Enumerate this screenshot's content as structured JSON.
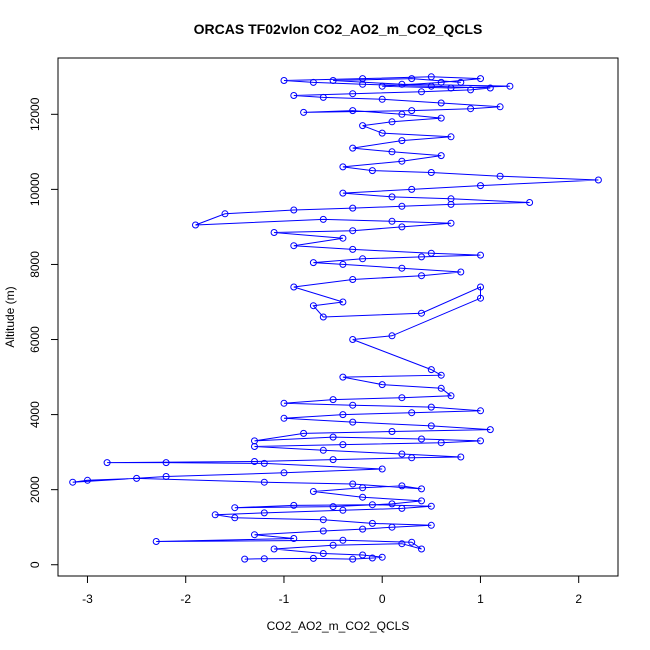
{
  "chart_data": {
    "type": "scatter",
    "title": "ORCAS TF02vlon CO2_AO2_m_CO2_QCLS",
    "xlabel": "CO2_AO2_m_CO2_QCLS",
    "ylabel": "Altitude (m)",
    "xlim": [
      -3.3,
      2.4
    ],
    "ylim": [
      -300,
      13500
    ],
    "x_ticks": [
      -3,
      -2,
      -1,
      0,
      1,
      2
    ],
    "y_ticks": [
      0,
      2000,
      4000,
      6000,
      8000,
      10000,
      12000
    ],
    "series_color": "#0000ff",
    "marker": "open-circle",
    "connected": true,
    "series": [
      {
        "name": "CO2_AO2_m_CO2_QCLS",
        "points": [
          [
            -1.4,
            150
          ],
          [
            -1.2,
            160
          ],
          [
            -0.7,
            170
          ],
          [
            -0.3,
            150
          ],
          [
            -0.1,
            180
          ],
          [
            0.0,
            200
          ],
          [
            -0.2,
            260
          ],
          [
            -0.6,
            300
          ],
          [
            -1.1,
            420
          ],
          [
            -0.5,
            520
          ],
          [
            0.2,
            560
          ],
          [
            0.4,
            420
          ],
          [
            0.3,
            600
          ],
          [
            -0.4,
            650
          ],
          [
            -2.3,
            620
          ],
          [
            -0.9,
            700
          ],
          [
            -1.3,
            800
          ],
          [
            -0.6,
            900
          ],
          [
            -0.2,
            950
          ],
          [
            0.1,
            1000
          ],
          [
            0.5,
            1050
          ],
          [
            -0.1,
            1100
          ],
          [
            -0.6,
            1200
          ],
          [
            -1.5,
            1250
          ],
          [
            -1.7,
            1330
          ],
          [
            -1.2,
            1380
          ],
          [
            -0.4,
            1450
          ],
          [
            0.2,
            1500
          ],
          [
            0.5,
            1560
          ],
          [
            -0.1,
            1600
          ],
          [
            -0.9,
            1580
          ],
          [
            -1.5,
            1520
          ],
          [
            -0.5,
            1550
          ],
          [
            0.1,
            1620
          ],
          [
            0.4,
            1700
          ],
          [
            -0.2,
            1800
          ],
          [
            -0.7,
            1950
          ],
          [
            -0.2,
            2050
          ],
          [
            0.2,
            2100
          ],
          [
            0.4,
            2020
          ],
          [
            -0.3,
            2150
          ],
          [
            -1.2,
            2200
          ],
          [
            -2.5,
            2300
          ],
          [
            -3.0,
            2250
          ],
          [
            -3.15,
            2200
          ],
          [
            -2.2,
            2350
          ],
          [
            -1.0,
            2450
          ],
          [
            0.0,
            2550
          ],
          [
            -1.2,
            2700
          ],
          [
            -2.2,
            2720
          ],
          [
            -2.8,
            2720
          ],
          [
            -1.3,
            2750
          ],
          [
            -0.5,
            2800
          ],
          [
            0.3,
            2850
          ],
          [
            0.8,
            2870
          ],
          [
            0.2,
            2950
          ],
          [
            -0.6,
            3050
          ],
          [
            -1.3,
            3150
          ],
          [
            -0.4,
            3200
          ],
          [
            0.6,
            3250
          ],
          [
            1.0,
            3300
          ],
          [
            0.4,
            3350
          ],
          [
            -0.5,
            3400
          ],
          [
            -1.3,
            3300
          ],
          [
            -0.8,
            3500
          ],
          [
            0.1,
            3550
          ],
          [
            1.1,
            3600
          ],
          [
            0.5,
            3700
          ],
          [
            -0.3,
            3800
          ],
          [
            -1.0,
            3900
          ],
          [
            -0.4,
            4000
          ],
          [
            0.3,
            4050
          ],
          [
            1.0,
            4100
          ],
          [
            0.5,
            4200
          ],
          [
            -0.3,
            4250
          ],
          [
            -1.0,
            4300
          ],
          [
            -0.5,
            4400
          ],
          [
            0.2,
            4450
          ],
          [
            0.7,
            4500
          ],
          [
            0.6,
            4700
          ],
          [
            0.0,
            4800
          ],
          [
            -0.4,
            5000
          ],
          [
            0.6,
            5050
          ],
          [
            0.5,
            5200
          ],
          [
            -0.3,
            6000
          ],
          [
            0.1,
            6100
          ],
          [
            1.0,
            7100
          ],
          [
            1.0,
            7400
          ],
          [
            0.4,
            6700
          ],
          [
            -0.6,
            6600
          ],
          [
            -0.7,
            6900
          ],
          [
            -0.4,
            7000
          ],
          [
            -0.9,
            7400
          ],
          [
            -0.3,
            7600
          ],
          [
            0.4,
            7700
          ],
          [
            0.8,
            7800
          ],
          [
            0.2,
            7900
          ],
          [
            -0.4,
            8000
          ],
          [
            -0.7,
            8050
          ],
          [
            -0.2,
            8150
          ],
          [
            0.4,
            8200
          ],
          [
            1.0,
            8250
          ],
          [
            0.5,
            8300
          ],
          [
            -0.3,
            8400
          ],
          [
            -0.9,
            8500
          ],
          [
            -0.4,
            8700
          ],
          [
            -1.1,
            8850
          ],
          [
            -0.3,
            8900
          ],
          [
            0.2,
            9000
          ],
          [
            0.7,
            9100
          ],
          [
            0.1,
            9150
          ],
          [
            -0.6,
            9200
          ],
          [
            -1.9,
            9050
          ],
          [
            -1.6,
            9350
          ],
          [
            -0.9,
            9450
          ],
          [
            -0.3,
            9500
          ],
          [
            0.2,
            9550
          ],
          [
            0.7,
            9600
          ],
          [
            1.5,
            9650
          ],
          [
            0.7,
            9750
          ],
          [
            0.1,
            9800
          ],
          [
            -0.4,
            9900
          ],
          [
            0.3,
            10000
          ],
          [
            1.0,
            10100
          ],
          [
            2.2,
            10250
          ],
          [
            1.2,
            10350
          ],
          [
            0.5,
            10450
          ],
          [
            -0.1,
            10500
          ],
          [
            -0.4,
            10600
          ],
          [
            0.2,
            10750
          ],
          [
            0.6,
            10900
          ],
          [
            0.1,
            11000
          ],
          [
            -0.3,
            11100
          ],
          [
            0.2,
            11300
          ],
          [
            0.7,
            11400
          ],
          [
            0.0,
            11500
          ],
          [
            -0.2,
            11700
          ],
          [
            0.1,
            11800
          ],
          [
            0.6,
            11900
          ],
          [
            0.2,
            12000
          ],
          [
            -0.3,
            12100
          ],
          [
            -0.8,
            12050
          ],
          [
            0.3,
            12100
          ],
          [
            0.9,
            12150
          ],
          [
            1.2,
            12200
          ],
          [
            0.6,
            12300
          ],
          [
            0.0,
            12400
          ],
          [
            -0.6,
            12450
          ],
          [
            -0.9,
            12500
          ],
          [
            -0.3,
            12550
          ],
          [
            0.4,
            12600
          ],
          [
            0.9,
            12650
          ],
          [
            1.1,
            12700
          ],
          [
            0.5,
            12750
          ],
          [
            -0.2,
            12800
          ],
          [
            -0.7,
            12850
          ],
          [
            -1.0,
            12900
          ],
          [
            -0.2,
            12950
          ],
          [
            0.5,
            13000
          ],
          [
            1.0,
            12950
          ],
          [
            0.6,
            12850
          ],
          [
            0.0,
            12750
          ],
          [
            0.7,
            12700
          ],
          [
            1.3,
            12750
          ],
          [
            0.2,
            12800
          ],
          [
            -0.5,
            12900
          ],
          [
            0.3,
            12950
          ],
          [
            0.8,
            12850
          ]
        ]
      }
    ]
  }
}
